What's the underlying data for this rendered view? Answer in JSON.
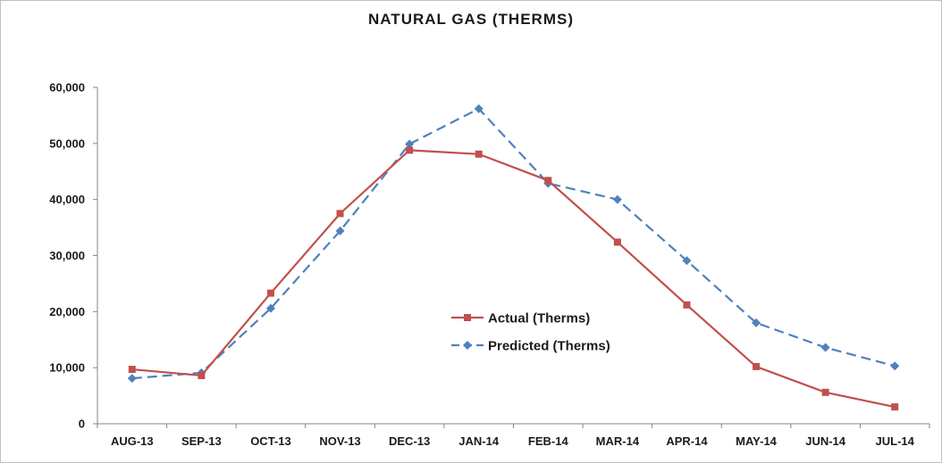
{
  "chart_data": {
    "type": "line",
    "title": "NATURAL GAS (THERMS)",
    "xlabel": "",
    "ylabel": "",
    "categories": [
      "AUG-13",
      "SEP-13",
      "OCT-13",
      "NOV-13",
      "DEC-13",
      "JAN-14",
      "FEB-14",
      "MAR-14",
      "APR-14",
      "MAY-14",
      "JUN-14",
      "JUL-14"
    ],
    "ylim": [
      0,
      60000
    ],
    "yticks": [
      0,
      10000,
      20000,
      30000,
      40000,
      50000,
      60000
    ],
    "ytick_labels": [
      "0",
      "10,000",
      "20,000",
      "30,000",
      "40,000",
      "50,000",
      "60,000"
    ],
    "grid": false,
    "legend_position": "center-inside",
    "series": [
      {
        "name": "Actual (Therms)",
        "color": "#c0504d",
        "line_style": "solid",
        "marker": "square",
        "values": [
          9700,
          8600,
          23300,
          37500,
          48800,
          48100,
          43400,
          32400,
          21200,
          10200,
          5600,
          3000
        ]
      },
      {
        "name": "Predicted (Therms)",
        "color": "#4f81bd",
        "line_style": "dashed",
        "marker": "diamond",
        "values": [
          8100,
          9100,
          20600,
          34400,
          49900,
          56200,
          42900,
          40000,
          29100,
          18000,
          13600,
          10300
        ]
      }
    ]
  }
}
